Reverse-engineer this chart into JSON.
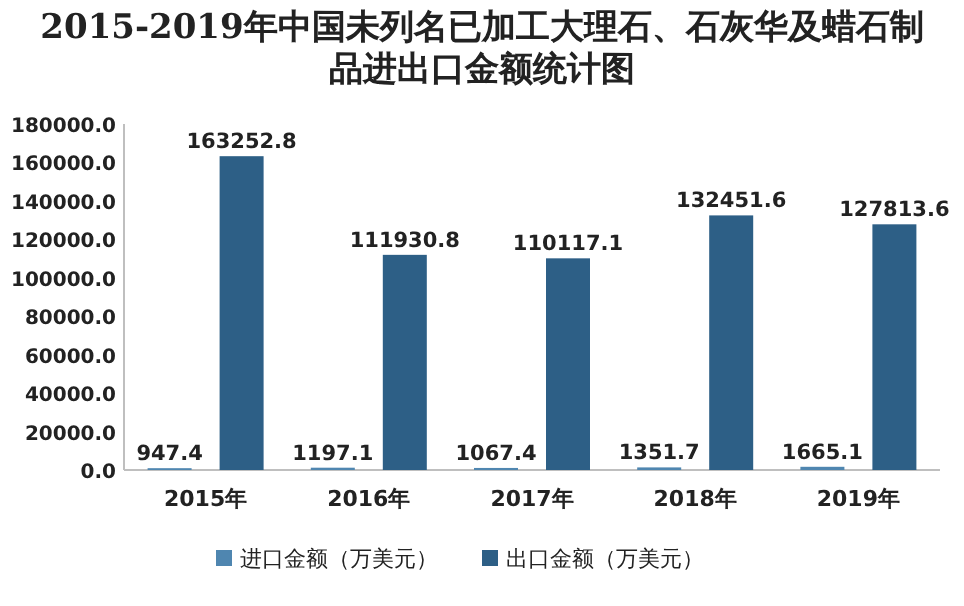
{
  "chart_data": {
    "type": "bar",
    "title": "2015-2019年中国未列名已加工大理石、石灰华及蜡石制品进出口金额统计图",
    "categories": [
      "2015年",
      "2016年",
      "2017年",
      "2018年",
      "2019年"
    ],
    "series": [
      {
        "name": "进口金额（万美元）",
        "color": "#4f86b0",
        "values": [
          947.4,
          1197.1,
          1067.4,
          1351.7,
          1665.1
        ]
      },
      {
        "name": "出口金额（万美元）",
        "color": "#2d5f86",
        "values": [
          163252.8,
          111930.8,
          110117.1,
          132451.6,
          127813.6
        ]
      }
    ],
    "ylim": [
      0,
      180000
    ],
    "yticks": [
      {
        "value": 0,
        "label": "0.0"
      },
      {
        "value": 20000,
        "label": "20000.0"
      },
      {
        "value": 40000,
        "label": "40000.0"
      },
      {
        "value": 60000,
        "label": "60000.0"
      },
      {
        "value": 80000,
        "label": "80000.0"
      },
      {
        "value": 100000,
        "label": "100000.0"
      },
      {
        "value": 120000,
        "label": "120000.0"
      },
      {
        "value": 140000,
        "label": "140000.0"
      },
      {
        "value": 160000,
        "label": "160000.0"
      },
      {
        "value": 180000,
        "label": "180000.0"
      }
    ],
    "data_labels": true,
    "legend": "bottom",
    "grid": false
  }
}
